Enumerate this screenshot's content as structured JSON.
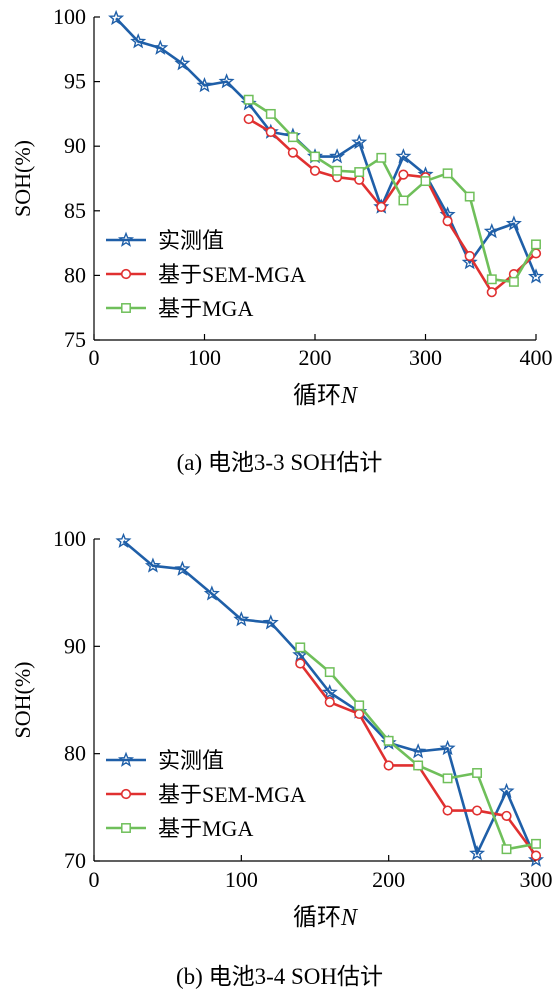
{
  "chart_data": [
    {
      "type": "line",
      "caption": "(a) 电池3-3 SOH估计",
      "xlabel_main": "循环",
      "xlabel_var": "N",
      "ylabel": "SOH(%)",
      "xlim": [
        0,
        400
      ],
      "ylim": [
        75,
        100
      ],
      "xticks": [
        0,
        100,
        200,
        300,
        400
      ],
      "yticks": [
        75,
        80,
        85,
        90,
        95,
        100
      ],
      "grid": false,
      "legend_position": "bottom-left",
      "series": [
        {
          "name": "实测值",
          "color": "#1f5fa8",
          "marker": "star",
          "x": [
            20,
            40,
            60,
            80,
            100,
            120,
            140,
            160,
            180,
            200,
            220,
            240,
            260,
            280,
            300,
            320,
            340,
            360,
            380,
            400
          ],
          "y": [
            99.9,
            98.1,
            97.6,
            96.4,
            94.7,
            95.0,
            93.3,
            91.1,
            90.8,
            89.2,
            89.2,
            90.3,
            85.3,
            89.2,
            87.8,
            84.7,
            81.0,
            83.4,
            84.0,
            79.9
          ]
        },
        {
          "name": "基于SEM-MGA",
          "color": "#e03030",
          "marker": "circle",
          "x": [
            140,
            160,
            180,
            200,
            220,
            240,
            260,
            280,
            300,
            320,
            340,
            360,
            380,
            400
          ],
          "y": [
            92.1,
            91.1,
            89.5,
            88.1,
            87.6,
            87.4,
            85.3,
            87.8,
            87.6,
            84.2,
            81.5,
            78.7,
            80.1,
            81.7
          ]
        },
        {
          "name": "基于MGA",
          "color": "#6fbf5a",
          "marker": "square",
          "x": [
            140,
            160,
            180,
            200,
            220,
            240,
            260,
            280,
            300,
            320,
            340,
            360,
            380,
            400
          ],
          "y": [
            93.6,
            92.5,
            90.7,
            89.2,
            88.1,
            88.0,
            89.1,
            85.8,
            87.3,
            87.9,
            86.1,
            79.7,
            79.5,
            82.4
          ]
        }
      ]
    },
    {
      "type": "line",
      "caption": "(b) 电池3-4 SOH估计",
      "xlabel_main": "循环",
      "xlabel_var": "N",
      "ylabel": "SOH(%)",
      "xlim": [
        0,
        300
      ],
      "ylim": [
        70,
        100
      ],
      "xticks": [
        0,
        100,
        200,
        300
      ],
      "yticks": [
        70,
        80,
        90,
        100
      ],
      "grid": false,
      "legend_position": "bottom-left",
      "series": [
        {
          "name": "实测值",
          "color": "#1f5fa8",
          "marker": "star",
          "x": [
            20,
            40,
            60,
            80,
            100,
            120,
            140,
            160,
            180,
            200,
            220,
            240,
            260,
            280,
            300
          ],
          "y": [
            99.8,
            97.5,
            97.2,
            94.9,
            92.5,
            92.2,
            89.2,
            85.7,
            83.9,
            81.0,
            80.2,
            80.5,
            70.7,
            76.5,
            70.1
          ]
        },
        {
          "name": "基于SEM-MGA",
          "color": "#e03030",
          "marker": "circle",
          "x": [
            140,
            160,
            180,
            200,
            220,
            240,
            260,
            280,
            300
          ],
          "y": [
            88.4,
            84.8,
            83.7,
            78.9,
            78.9,
            74.7,
            74.7,
            74.2,
            70.5
          ]
        },
        {
          "name": "基于MGA",
          "color": "#6fbf5a",
          "marker": "square",
          "x": [
            140,
            160,
            180,
            200,
            220,
            240,
            260,
            280,
            300
          ],
          "y": [
            89.9,
            87.6,
            84.5,
            81.2,
            78.9,
            77.7,
            78.2,
            71.1,
            71.6
          ]
        }
      ]
    }
  ]
}
